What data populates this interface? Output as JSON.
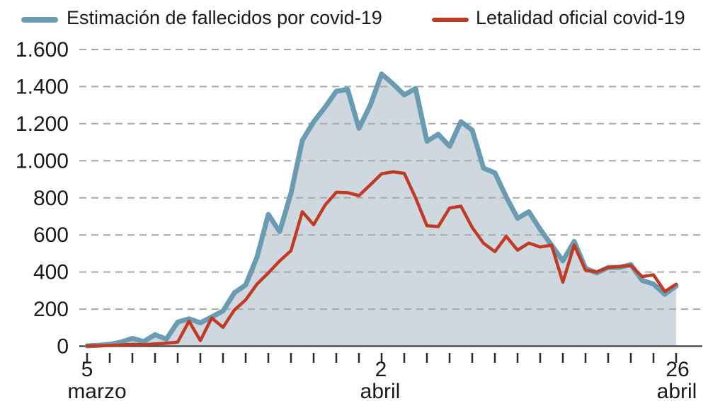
{
  "legend": [
    {
      "label": "Estimación de fallecidos por covid-19",
      "color": "#699cb3"
    },
    {
      "label": "Letalidad oficial covid-19",
      "color": "#c03a24"
    }
  ],
  "yaxis": {
    "labels": [
      "1.600",
      "1.400",
      "1.200",
      "1.000",
      "800",
      "600",
      "400",
      "200",
      "0"
    ]
  },
  "xaxis": {
    "left": {
      "day": "5",
      "month": "marzo"
    },
    "mid": {
      "day": "2",
      "month": "abril"
    },
    "right": {
      "day": "26",
      "month": "abril"
    }
  },
  "chart_data": {
    "type": "line",
    "title": "",
    "x": [
      "5 mar",
      "6 mar",
      "7 mar",
      "8 mar",
      "9 mar",
      "10 mar",
      "11 mar",
      "12 mar",
      "13 mar",
      "14 mar",
      "15 mar",
      "16 mar",
      "17 mar",
      "18 mar",
      "19 mar",
      "20 mar",
      "21 mar",
      "22 mar",
      "23 mar",
      "24 mar",
      "25 mar",
      "26 mar",
      "27 mar",
      "28 mar",
      "29 mar",
      "30 mar",
      "31 mar",
      "1 abr",
      "2 abr",
      "3 abr",
      "4 abr",
      "5 abr",
      "6 abr",
      "7 abr",
      "8 abr",
      "9 abr",
      "10 abr",
      "11 abr",
      "12 abr",
      "13 abr",
      "14 abr",
      "15 abr",
      "16 abr",
      "17 abr",
      "18 abr",
      "19 abr",
      "20 abr",
      "21 abr",
      "22 abr",
      "23 abr",
      "24 abr",
      "25 abr",
      "26 abr"
    ],
    "series": [
      {
        "name": "Estimación de fallecidos por covid-19",
        "style": "area-line",
        "color": "#699cb3",
        "fill": "#cfd8df",
        "values": [
          2,
          5,
          10,
          22,
          42,
          25,
          62,
          38,
          130,
          148,
          126,
          158,
          190,
          288,
          330,
          480,
          710,
          618,
          825,
          1110,
          1210,
          1288,
          1375,
          1385,
          1175,
          1300,
          1468,
          1415,
          1355,
          1390,
          1105,
          1143,
          1078,
          1211,
          1165,
          960,
          935,
          805,
          690,
          725,
          630,
          545,
          460,
          565,
          420,
          395,
          425,
          425,
          440,
          355,
          335,
          280,
          325
        ]
      },
      {
        "name": "Letalidad oficial covid-19",
        "style": "line",
        "color": "#c03a24",
        "values": [
          1,
          2,
          4,
          6,
          10,
          8,
          12,
          16,
          22,
          135,
          30,
          152,
          102,
          195,
          250,
          335,
          395,
          460,
          515,
          725,
          655,
          760,
          830,
          828,
          812,
          870,
          930,
          940,
          932,
          800,
          650,
          645,
          745,
          755,
          640,
          555,
          510,
          592,
          518,
          556,
          535,
          545,
          345,
          545,
          410,
          400,
          425,
          430,
          435,
          375,
          385,
          295,
          335
        ]
      }
    ],
    "ylim": [
      0,
      1600
    ],
    "ytick_interval": 200,
    "ytick_labels": [
      "0",
      "200",
      "400",
      "600",
      "800",
      "1.000",
      "1.200",
      "1.400",
      "1.600"
    ],
    "xtick_interval_days": 2,
    "xtick_count": 27,
    "xtick_labels_shown": [
      "5 marzo",
      "2 abril",
      "26 abril"
    ],
    "grid": "horizontal dashed gray",
    "legend_position": "top"
  }
}
